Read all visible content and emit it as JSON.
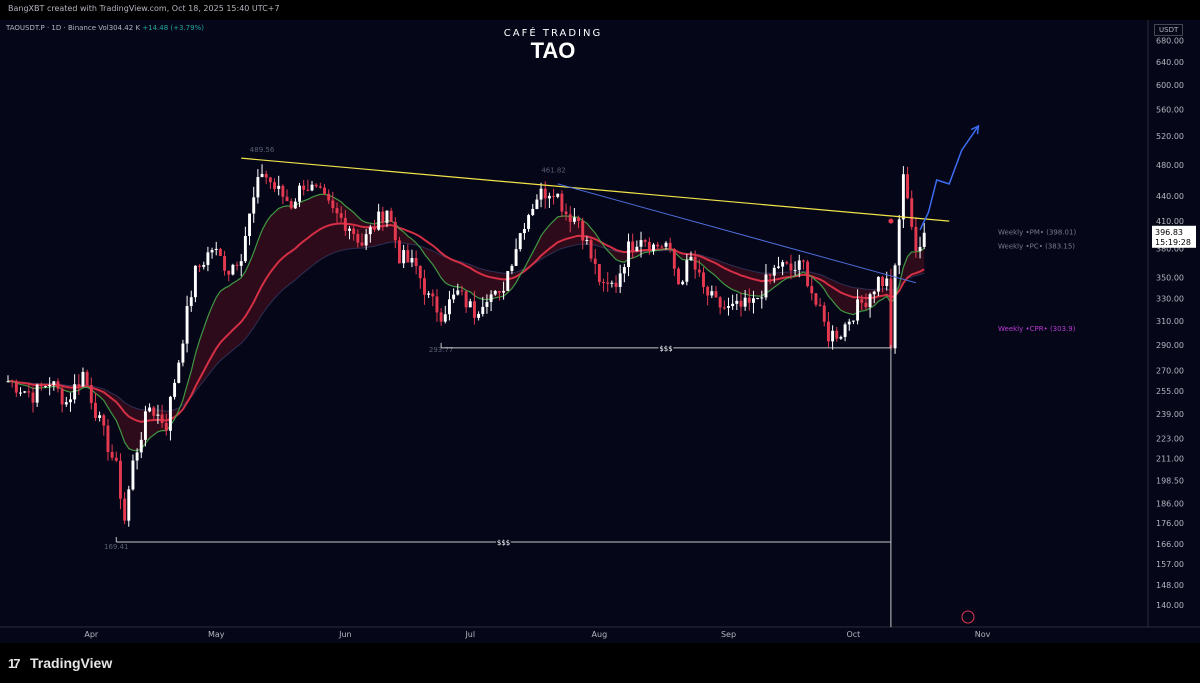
{
  "header": {
    "attribution": "BangXBT created with TradingView.com, Oct 18, 2025 15:40 UTC+7"
  },
  "legend": {
    "symbol": "TAOUSDT.P · 1D · Binance",
    "volume": "Vol304.42 K",
    "change": "+14.48 (+3.79%)"
  },
  "brand": {
    "subtitle": "CAFÉ TRADING",
    "title": "TAO"
  },
  "footer": {
    "logo_mark": "17",
    "logo_text": "TradingView"
  },
  "price_label": {
    "price": "396.83",
    "countdown": "15:19:28"
  },
  "colors": {
    "background": "#050719",
    "up": "#ffffff",
    "down": "#e53950",
    "trendline": "#f2e34a",
    "descending_line": "#4c6bd6",
    "projection": "#3d6cf0",
    "ma_slow": "#d32f45",
    "ma_fast": "#47b04a",
    "level_line": "#c8c8c8",
    "cpr": "#ba3bd1"
  },
  "chart_data": {
    "type": "candlestick",
    "title": "TAO",
    "symbol": "TAOUSDT.P",
    "interval": "1D",
    "exchange": "Binance",
    "currency": "USDT",
    "ylim": [
      135,
      700
    ],
    "y_scale": "log",
    "y_ticks": [
      680,
      640,
      600,
      560,
      520,
      480,
      440,
      410,
      380,
      350,
      330,
      310,
      290,
      270,
      255,
      239,
      223,
      211,
      198.5,
      186,
      176,
      166,
      157,
      148,
      140
    ],
    "y_tick_labels": [
      "680.00",
      "640.00",
      "600.00",
      "560.00",
      "520.00",
      "480.00",
      "440.00",
      "410.00",
      "380.00",
      "350.00",
      "330.00",
      "310.00",
      "290.00",
      "270.00",
      "255.00",
      "239.00",
      "223.00",
      "211.00",
      "198.50",
      "186.00",
      "176.00",
      "166.00",
      "157.00",
      "148.00",
      "140.00"
    ],
    "x_range": [
      "2025-03-12",
      "2025-11-10"
    ],
    "x_ticks": [
      {
        "date": "2025-04-01",
        "label": "Apr"
      },
      {
        "date": "2025-05-01",
        "label": "May"
      },
      {
        "date": "2025-06-01",
        "label": "Jun"
      },
      {
        "date": "2025-07-01",
        "label": "Jul"
      },
      {
        "date": "2025-08-01",
        "label": "Aug"
      },
      {
        "date": "2025-09-01",
        "label": "Sep"
      },
      {
        "date": "2025-10-01",
        "label": "Oct"
      },
      {
        "date": "2025-11-01",
        "label": "Nov"
      }
    ],
    "candle_path": {
      "start_date": "2025-03-12",
      "closes": [
        [
          "2025-03-12",
          262
        ],
        [
          "2025-03-18",
          252
        ],
        [
          "2025-03-22",
          262
        ],
        [
          "2025-03-26",
          247
        ],
        [
          "2025-03-30",
          268
        ],
        [
          "2025-04-03",
          233
        ],
        [
          "2025-04-07",
          205
        ],
        [
          "2025-04-09",
          178
        ],
        [
          "2025-04-11",
          208
        ],
        [
          "2025-04-15",
          244
        ],
        [
          "2025-04-19",
          232
        ],
        [
          "2025-04-22",
          278
        ],
        [
          "2025-04-26",
          355
        ],
        [
          "2025-04-30",
          380
        ],
        [
          "2025-05-04",
          358
        ],
        [
          "2025-05-07",
          375
        ],
        [
          "2025-05-10",
          435
        ],
        [
          "2025-05-12",
          472
        ],
        [
          "2025-05-15",
          450
        ],
        [
          "2025-05-19",
          430
        ],
        [
          "2025-05-22",
          456
        ],
        [
          "2025-05-26",
          440
        ],
        [
          "2025-05-29",
          420
        ],
        [
          "2025-06-02",
          405
        ],
        [
          "2025-06-05",
          385
        ],
        [
          "2025-06-08",
          405
        ],
        [
          "2025-06-11",
          425
        ],
        [
          "2025-06-14",
          372
        ],
        [
          "2025-06-18",
          360
        ],
        [
          "2025-06-21",
          330
        ],
        [
          "2025-06-24",
          317
        ],
        [
          "2025-06-28",
          335
        ],
        [
          "2025-07-02",
          318
        ],
        [
          "2025-07-05",
          335
        ],
        [
          "2025-07-08",
          330
        ],
        [
          "2025-07-11",
          370
        ],
        [
          "2025-07-14",
          410
        ],
        [
          "2025-07-17",
          440
        ],
        [
          "2025-07-21",
          450
        ],
        [
          "2025-07-24",
          420
        ],
        [
          "2025-07-27",
          412
        ],
        [
          "2025-07-30",
          370
        ],
        [
          "2025-08-02",
          338
        ],
        [
          "2025-08-05",
          345
        ],
        [
          "2025-08-08",
          380
        ],
        [
          "2025-08-11",
          395
        ],
        [
          "2025-08-14",
          382
        ],
        [
          "2025-08-17",
          385
        ],
        [
          "2025-08-20",
          345
        ],
        [
          "2025-08-23",
          368
        ],
        [
          "2025-08-26",
          338
        ],
        [
          "2025-08-29",
          325
        ],
        [
          "2025-09-01",
          320
        ],
        [
          "2025-09-04",
          322
        ],
        [
          "2025-09-07",
          325
        ],
        [
          "2025-09-10",
          345
        ],
        [
          "2025-09-13",
          363
        ],
        [
          "2025-09-16",
          357
        ],
        [
          "2025-09-19",
          362
        ],
        [
          "2025-09-22",
          325
        ],
        [
          "2025-09-25",
          298
        ],
        [
          "2025-09-28",
          301
        ],
        [
          "2025-10-01",
          318
        ],
        [
          "2025-10-04",
          330
        ],
        [
          "2025-10-07",
          348
        ],
        [
          "2025-10-09",
          345
        ],
        [
          "2025-10-10",
          290
        ],
        [
          "2025-10-11",
          355
        ],
        [
          "2025-10-12",
          410
        ],
        [
          "2025-10-13",
          470
        ],
        [
          "2025-10-14",
          430
        ],
        [
          "2025-10-15",
          410
        ],
        [
          "2025-10-16",
          380
        ],
        [
          "2025-10-17",
          383
        ],
        [
          "2025-10-18",
          396.83
        ]
      ]
    },
    "annotations": [
      {
        "type": "price_label",
        "date": "2025-05-12",
        "price": 489.56,
        "label": "489.56"
      },
      {
        "type": "price_label",
        "date": "2025-07-21",
        "price": 461.82,
        "label": "461.82"
      },
      {
        "type": "price_label",
        "date": "2025-06-24",
        "price": 293.77,
        "label": "293.77"
      },
      {
        "type": "price_label",
        "date": "2025-04-07",
        "price": 169.41,
        "label": "169.41"
      },
      {
        "type": "horizontal_segment",
        "label": "$$$",
        "price": 287.5,
        "from": "2025-06-24",
        "to": "2025-10-10"
      },
      {
        "type": "horizontal_segment",
        "label": "$$$",
        "price": 167,
        "from": "2025-04-07",
        "to": "2025-10-10"
      },
      {
        "type": "vertical_line",
        "date": "2025-10-10"
      }
    ],
    "levels": [
      {
        "label": "Weekly •PM• (398.01)",
        "price": 398.01
      },
      {
        "label": "Weekly •PC• (383.15)",
        "price": 383.15
      },
      {
        "label": "Weekly •CPR• (303.9)",
        "price": 303.9
      }
    ],
    "trendlines": [
      {
        "name": "resistance",
        "from": [
          "2025-05-07",
          489
        ],
        "to": [
          "2025-10-24",
          410
        ]
      },
      {
        "name": "descending",
        "from": [
          "2025-07-22",
          455
        ],
        "to": [
          "2025-10-16",
          345
        ]
      }
    ],
    "projection": [
      [
        "2025-10-17",
        400
      ],
      [
        "2025-10-19",
        420
      ],
      [
        "2025-10-21",
        460
      ],
      [
        "2025-10-24",
        455
      ],
      [
        "2025-10-27",
        500
      ],
      [
        "2025-10-31",
        535
      ]
    ]
  }
}
